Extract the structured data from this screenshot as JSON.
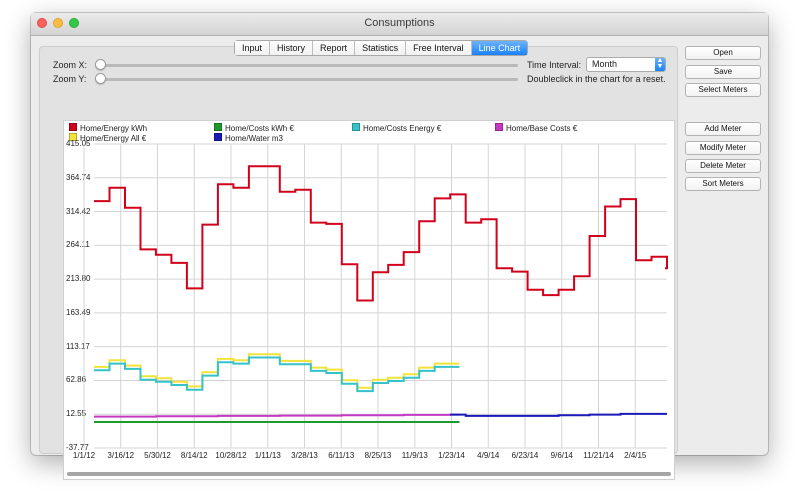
{
  "window": {
    "title": "Consumptions"
  },
  "tabs": [
    "Input",
    "History",
    "Report",
    "Statistics",
    "Free Interval",
    "Line Chart"
  ],
  "active_tab": "Line Chart",
  "zoom": {
    "x_label": "Zoom X:",
    "y_label": "Zoom Y:",
    "x_value": 0,
    "y_value": 0
  },
  "time_interval": {
    "label": "Time Interval:",
    "value": "Month"
  },
  "hint": "Doubleclick in the chart for a reset.",
  "buttons": {
    "open": "Open",
    "save": "Save",
    "select_meters": "Select Meters",
    "add_meter": "Add Meter",
    "modify_meter": "Modify Meter",
    "delete_meter": "Delete Meter",
    "sort_meters": "Sort Meters"
  },
  "colors": {
    "energy_kwh": "#d0021b",
    "energy_all": "#f2e33a",
    "costs_kwh": "#1e9a2c",
    "water": "#1a1ab8",
    "costs_energy": "#35c2c8",
    "base_costs": "#c438c4",
    "grid": "#d4d4d4",
    "active_tab": "#1a82fb"
  },
  "chart_data": {
    "type": "line",
    "legend": [
      {
        "name": "Home/Energy kWh",
        "color": "#d0021b"
      },
      {
        "name": "Home/Costs kWh €",
        "color": "#1e9a2c"
      },
      {
        "name": "Home/Costs Energy €",
        "color": "#35c2c8"
      },
      {
        "name": "Home/Base Costs €",
        "color": "#c438c4"
      },
      {
        "name": "Home/Energy All €",
        "color": "#f2e33a"
      },
      {
        "name": "Home/Water m3",
        "color": "#1a1ab8"
      }
    ],
    "yticks": [
      "415.05",
      "364.74",
      "314.42",
      "264.11",
      "213.80",
      "163.49",
      "113.17",
      "62.86",
      "12.55",
      "-37.77"
    ],
    "ylim": [
      -37.77,
      415.05
    ],
    "xticks": [
      "1/1/12",
      "3/16/12",
      "5/30/12",
      "8/14/12",
      "10/28/12",
      "1/11/13",
      "3/28/13",
      "6/11/13",
      "8/25/13",
      "11/9/13",
      "1/23/14",
      "4/9/14",
      "6/23/14",
      "9/6/14",
      "11/21/14",
      "2/4/15"
    ],
    "x_start": "1/1/12",
    "x_months": 38,
    "series": [
      {
        "name": "Home/Energy kWh",
        "color": "#d0021b",
        "step": true,
        "points": [
          [
            0,
            330
          ],
          [
            1,
            350
          ],
          [
            2,
            320
          ],
          [
            3,
            258
          ],
          [
            4,
            250
          ],
          [
            5,
            238
          ],
          [
            6,
            200
          ],
          [
            7,
            295
          ],
          [
            8,
            355
          ],
          [
            9,
            350
          ],
          [
            10,
            382
          ],
          [
            11,
            382
          ],
          [
            12,
            344
          ],
          [
            13,
            347
          ],
          [
            14,
            298
          ],
          [
            15,
            296
          ],
          [
            16,
            236
          ],
          [
            17,
            182
          ],
          [
            18,
            224
          ],
          [
            19,
            235
          ],
          [
            20,
            254
          ],
          [
            21,
            300
          ],
          [
            22,
            334
          ],
          [
            23,
            340
          ],
          [
            24,
            298
          ],
          [
            25,
            303
          ],
          [
            26,
            230
          ],
          [
            27,
            225
          ],
          [
            28,
            198
          ],
          [
            29,
            190
          ],
          [
            30,
            198
          ],
          [
            31,
            218
          ],
          [
            32,
            278
          ],
          [
            33,
            322
          ],
          [
            34,
            333
          ],
          [
            35,
            242
          ],
          [
            36,
            247
          ],
          [
            37,
            230
          ]
        ]
      },
      {
        "name": "Home/Energy All €",
        "color": "#f2e33a",
        "step": true,
        "points": [
          [
            0,
            83
          ],
          [
            1,
            93
          ],
          [
            2,
            85
          ],
          [
            3,
            69
          ],
          [
            4,
            66
          ],
          [
            5,
            61
          ],
          [
            6,
            54
          ],
          [
            7,
            75
          ],
          [
            8,
            95
          ],
          [
            9,
            93
          ],
          [
            10,
            102
          ],
          [
            11,
            102
          ],
          [
            12,
            92
          ],
          [
            13,
            92
          ],
          [
            14,
            82
          ],
          [
            15,
            79
          ],
          [
            16,
            63
          ],
          [
            17,
            52
          ],
          [
            18,
            64
          ],
          [
            19,
            67
          ],
          [
            20,
            72
          ],
          [
            21,
            82
          ],
          [
            22,
            88
          ],
          [
            23,
            88
          ]
        ]
      },
      {
        "name": "Home/Costs Energy €",
        "color": "#35c2c8",
        "step": true,
        "points": [
          [
            0,
            78
          ],
          [
            1,
            88
          ],
          [
            2,
            80
          ],
          [
            3,
            64
          ],
          [
            4,
            61
          ],
          [
            5,
            56
          ],
          [
            6,
            49
          ],
          [
            7,
            70
          ],
          [
            8,
            90
          ],
          [
            9,
            88
          ],
          [
            10,
            97
          ],
          [
            11,
            97
          ],
          [
            12,
            87
          ],
          [
            13,
            87
          ],
          [
            14,
            77
          ],
          [
            15,
            74
          ],
          [
            16,
            58
          ],
          [
            17,
            47
          ],
          [
            18,
            59
          ],
          [
            19,
            62
          ],
          [
            20,
            67
          ],
          [
            21,
            77
          ],
          [
            22,
            83
          ],
          [
            23,
            83
          ]
        ]
      },
      {
        "name": "Home/Base Costs €",
        "color": "#c438c4",
        "step": true,
        "points": [
          [
            0,
            9
          ],
          [
            4,
            9.5
          ],
          [
            8,
            10
          ],
          [
            12,
            10.5
          ],
          [
            16,
            11
          ],
          [
            20,
            11.5
          ],
          [
            23,
            12
          ]
        ]
      },
      {
        "name": "Home/Costs kWh €",
        "color": "#1e9a2c",
        "step": true,
        "points": [
          [
            0,
            1
          ],
          [
            23,
            1
          ]
        ]
      },
      {
        "name": "Home/Water m3",
        "color": "#1a1ab8",
        "step": true,
        "points": [
          [
            23,
            12
          ],
          [
            24,
            10
          ],
          [
            27,
            10
          ],
          [
            30,
            11
          ],
          [
            32,
            12
          ],
          [
            34,
            13
          ],
          [
            37,
            13
          ]
        ]
      }
    ]
  }
}
